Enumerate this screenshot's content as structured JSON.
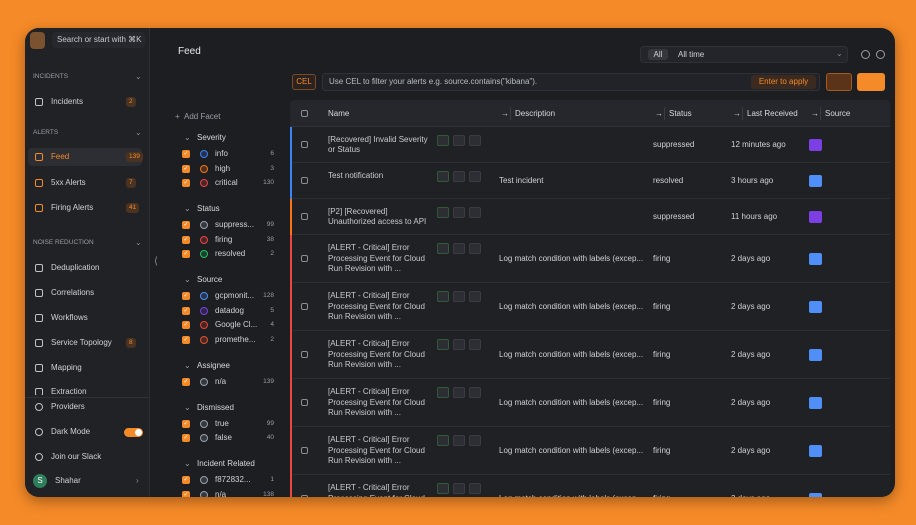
{
  "search": "Search or start with ⌘K",
  "sidebar": {
    "sections": [
      {
        "title": "INCIDENTS",
        "items": [
          {
            "label": "Incidents",
            "badge": 2
          }
        ]
      },
      {
        "title": "ALERTS",
        "items": [
          {
            "label": "Feed",
            "badge": 139
          },
          {
            "label": "5xx Alerts",
            "badge": 7
          },
          {
            "label": "Firing Alerts",
            "badge": 41
          }
        ]
      },
      {
        "title": "NOISE REDUCTION",
        "items": [
          {
            "label": "Deduplication"
          },
          {
            "label": "Correlations"
          },
          {
            "label": "Workflows"
          },
          {
            "label": "Service Topology",
            "badge": 8
          },
          {
            "label": "Mapping"
          },
          {
            "label": "Extraction"
          }
        ]
      }
    ],
    "footer": [
      {
        "label": "Providers"
      },
      {
        "label": "Dark Mode"
      },
      {
        "label": "Join our Slack"
      }
    ],
    "user": {
      "initial": "S",
      "name": "Shahar"
    }
  },
  "header": {
    "title": "Feed",
    "time_filter": {
      "all": "All",
      "range": "All time"
    }
  },
  "cel": {
    "tag": "CEL",
    "placeholder": "Use CEL to filter your alerts e.g. source.contains(\"kibana\").",
    "apply": "Enter to apply"
  },
  "facets": {
    "add": "Add Facet",
    "groups": [
      {
        "title": "Severity",
        "options": [
          {
            "label": "info",
            "count": 6,
            "color": "#3b82f6"
          },
          {
            "label": "high",
            "count": 3,
            "color": "#f97316"
          },
          {
            "label": "critical",
            "count": 130,
            "color": "#ef4444"
          }
        ]
      },
      {
        "title": "Status",
        "options": [
          {
            "label": "suppress...",
            "count": 99,
            "color": "#9ca3af"
          },
          {
            "label": "firing",
            "count": 38,
            "color": "#ef4444"
          },
          {
            "label": "resolved",
            "count": 2,
            "color": "#22c55e"
          }
        ]
      },
      {
        "title": "Source",
        "options": [
          {
            "label": "gcpmonit...",
            "count": 128,
            "color": "#4f8ff7"
          },
          {
            "label": "datadog",
            "count": 5,
            "color": "#7b3fe4"
          },
          {
            "label": "Google Cl...",
            "count": 4,
            "color": "#ea4335"
          },
          {
            "label": "promethe...",
            "count": 2,
            "color": "#e6522c"
          }
        ]
      },
      {
        "title": "Assignee",
        "options": [
          {
            "label": "n/a",
            "count": 139,
            "color": "#9ca3af"
          }
        ]
      },
      {
        "title": "Dismissed",
        "options": [
          {
            "label": "true",
            "count": 99,
            "color": "#9ca3af"
          },
          {
            "label": "false",
            "count": 40,
            "color": "#9ca3af"
          }
        ]
      },
      {
        "title": "Incident Related",
        "options": [
          {
            "label": "f872832...",
            "count": 1,
            "color": "#9ca3af"
          },
          {
            "label": "n/a",
            "count": 138,
            "color": "#9ca3af"
          }
        ]
      }
    ]
  },
  "table": {
    "columns": [
      "Name",
      "Description",
      "Status",
      "Last Received",
      "Source"
    ],
    "rows": [
      {
        "name": "[Recovered] Invalid Severity or Status",
        "description": "",
        "status": "suppressed",
        "last_received": "12 minutes ago",
        "color": "#3b82f6",
        "source_color": "#7b3fe4"
      },
      {
        "name": "Test notification",
        "description": "Test incident",
        "status": "resolved",
        "last_received": "3 hours ago",
        "color": "#3b82f6",
        "source_color": "#4f8ff7"
      },
      {
        "name": "[P2] [Recovered] Unauthorized access to API",
        "description": "",
        "status": "suppressed",
        "last_received": "11 hours ago",
        "color": "#f97316",
        "source_color": "#7b3fe4"
      },
      {
        "name": "[ALERT - Critical] Error Processing Event for Cloud Run Revision with ...",
        "description": "Log match condition with labels (excep...",
        "status": "firing",
        "last_received": "2 days ago",
        "color": "#ef4444",
        "source_color": "#4f8ff7"
      },
      {
        "name": "[ALERT - Critical] Error Processing Event for Cloud Run Revision with ...",
        "description": "Log match condition with labels (excep...",
        "status": "firing",
        "last_received": "2 days ago",
        "color": "#ef4444",
        "source_color": "#4f8ff7"
      },
      {
        "name": "[ALERT - Critical] Error Processing Event for Cloud Run Revision with ...",
        "description": "Log match condition with labels (excep...",
        "status": "firing",
        "last_received": "2 days ago",
        "color": "#ef4444",
        "source_color": "#4f8ff7"
      },
      {
        "name": "[ALERT - Critical] Error Processing Event for Cloud Run Revision with ...",
        "description": "Log match condition with labels (excep...",
        "status": "firing",
        "last_received": "2 days ago",
        "color": "#ef4444",
        "source_color": "#4f8ff7"
      },
      {
        "name": "[ALERT - Critical] Error Processing Event for Cloud Run Revision with ...",
        "description": "Log match condition with labels (excep...",
        "status": "firing",
        "last_received": "2 days ago",
        "color": "#ef4444",
        "source_color": "#4f8ff7"
      },
      {
        "name": "[ALERT - Critical] Error Processing Event for Cloud Run Revision with ...",
        "description": "Log match condition with labels (excep...",
        "status": "firing",
        "last_received": "2 days ago",
        "color": "#ef4444",
        "source_color": "#4f8ff7"
      }
    ]
  }
}
